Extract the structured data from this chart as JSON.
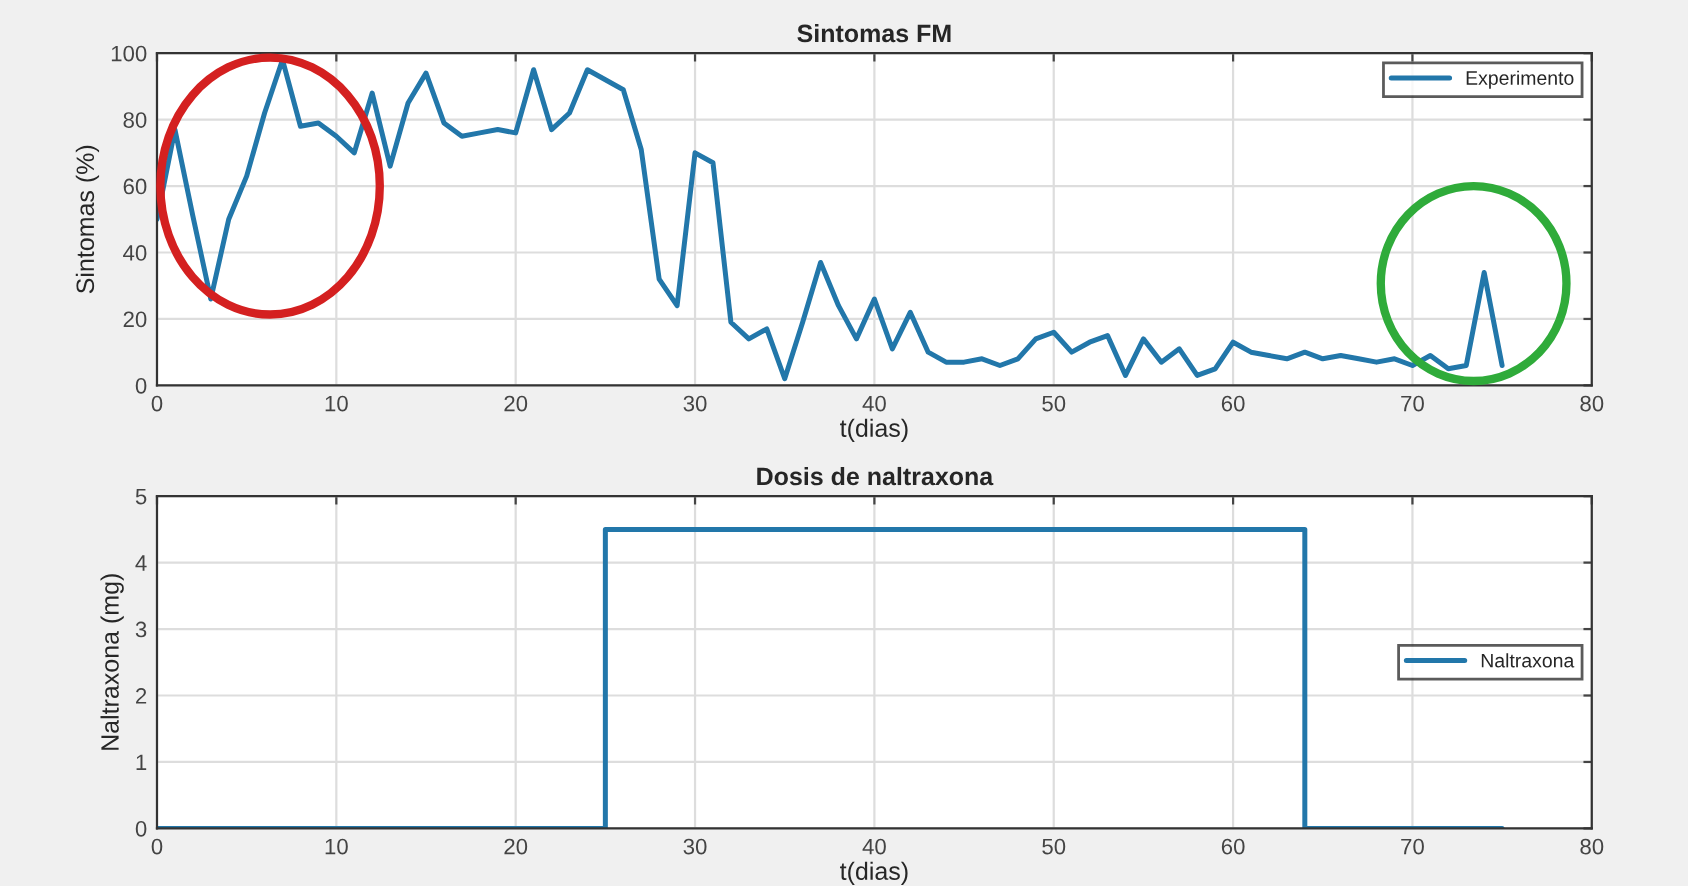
{
  "chart_data": [
    {
      "type": "line",
      "title": "Sintomas FM",
      "xlabel": "t(dias)",
      "ylabel": "Sintomas (%)",
      "xlim": [
        0,
        80
      ],
      "xticks": [
        0,
        10,
        20,
        30,
        40,
        50,
        60,
        70,
        80
      ],
      "ylim": [
        0,
        100
      ],
      "yticks": [
        0,
        20,
        40,
        60,
        80,
        100
      ],
      "grid": true,
      "legend": "top right",
      "x": [
        0,
        1,
        2,
        3,
        4,
        5,
        6,
        7,
        8,
        9,
        10,
        11,
        12,
        13,
        14,
        15,
        16,
        17,
        18,
        19,
        20,
        21,
        22,
        23,
        24,
        25,
        26,
        27,
        28,
        29,
        30,
        31,
        32,
        33,
        34,
        35,
        36,
        37,
        38,
        39,
        40,
        41,
        42,
        43,
        44,
        45,
        46,
        47,
        48,
        49,
        50,
        51,
        52,
        53,
        54,
        55,
        56,
        57,
        58,
        59,
        60,
        61,
        62,
        63,
        64,
        65,
        66,
        67,
        68,
        69,
        70,
        71,
        72,
        73,
        74,
        75
      ],
      "series": [
        {
          "name": "Experimento",
          "color": "#2277aa",
          "values": [
            50,
            77,
            51,
            26,
            50,
            63,
            82,
            98,
            78,
            79,
            75,
            70,
            88,
            66,
            85,
            94,
            79,
            75,
            76,
            77,
            76,
            95,
            77,
            82,
            95,
            92,
            89,
            71,
            32,
            24,
            70,
            67,
            19,
            14,
            17,
            2,
            19,
            37,
            24,
            14,
            26,
            11,
            22,
            10,
            7,
            7,
            8,
            6,
            8,
            14,
            16,
            10,
            13,
            15,
            3,
            14,
            7,
            11,
            3,
            5,
            13,
            10,
            9,
            8,
            10,
            8,
            9,
            8,
            7,
            8,
            6,
            9,
            5,
            6,
            34,
            6
          ]
        }
      ]
    },
    {
      "type": "step",
      "title": "Dosis de naltraxona",
      "xlabel": "t(dias)",
      "ylabel": "Naltraxona (mg)",
      "xlim": [
        0,
        80
      ],
      "xticks": [
        0,
        10,
        20,
        30,
        40,
        50,
        60,
        70,
        80
      ],
      "ylim": [
        0,
        5
      ],
      "yticks": [
        0,
        1,
        2,
        3,
        4,
        5
      ],
      "grid": true,
      "legend": "right",
      "x": [
        0,
        25,
        64,
        75
      ],
      "series": [
        {
          "name": "Naltraxona",
          "color": "#2277aa",
          "values": [
            0,
            4.5,
            0,
            0
          ]
        }
      ]
    }
  ]
}
